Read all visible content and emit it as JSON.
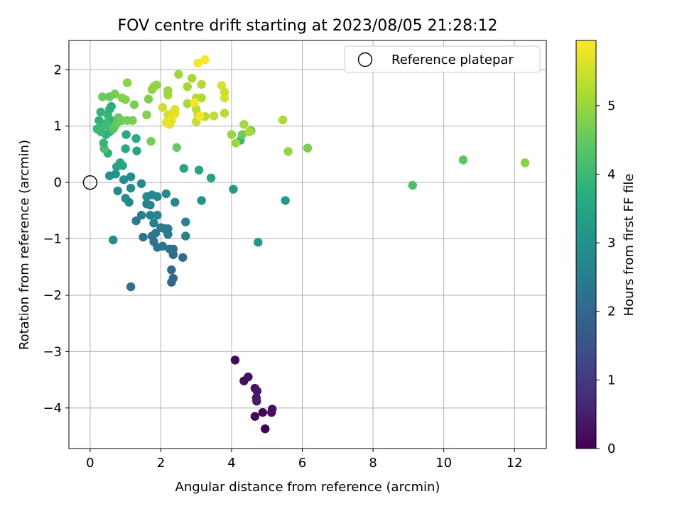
{
  "chart_data": {
    "type": "scatter",
    "title": "FOV centre drift starting at 2023/08/05 21:28:12",
    "xlabel": "Angular distance from reference (arcmin)",
    "ylabel": "Rotation from reference (arcmin)",
    "xlim": [
      -0.6,
      12.9
    ],
    "ylim": [
      -4.72,
      2.52
    ],
    "xticks": [
      "0",
      "2",
      "4",
      "6",
      "8",
      "10",
      "12"
    ],
    "yticks": [
      "−4",
      "−3",
      "−2",
      "−1",
      "0",
      "1",
      "2"
    ],
    "grid": true,
    "legend": {
      "placement": "top-right",
      "entries": [
        "Reference platepar"
      ]
    },
    "reference_point": {
      "x": 0,
      "y": 0
    },
    "colorbar": {
      "label": "Hours from first FF file",
      "colormap": "viridis",
      "range": [
        0,
        5.95
      ],
      "ticks": [
        "0",
        "1",
        "2",
        "3",
        "4",
        "5"
      ]
    },
    "series": [
      {
        "values": [
          {
            "x": 4.1,
            "y": -3.15,
            "c": 0.15
          },
          {
            "x": 4.35,
            "y": -3.52,
            "c": 0.2
          },
          {
            "x": 4.47,
            "y": -3.45,
            "c": 0.25
          },
          {
            "x": 4.66,
            "y": -3.65,
            "c": 0.3
          },
          {
            "x": 4.72,
            "y": -3.7,
            "c": 0.35
          },
          {
            "x": 4.7,
            "y": -3.82,
            "c": 0.4
          },
          {
            "x": 4.71,
            "y": -3.88,
            "c": 0.45
          },
          {
            "x": 4.66,
            "y": -4.15,
            "c": 0.1
          },
          {
            "x": 4.88,
            "y": -4.08,
            "c": 0.05
          },
          {
            "x": 5.13,
            "y": -4.08,
            "c": 0.2
          },
          {
            "x": 5.15,
            "y": -4.02,
            "c": 0.25
          },
          {
            "x": 4.95,
            "y": -4.37,
            "c": 0.0
          },
          {
            "x": 2.3,
            "y": -1.77,
            "c": 1.9
          },
          {
            "x": 2.35,
            "y": -1.7,
            "c": 1.95
          },
          {
            "x": 2.3,
            "y": -1.55,
            "c": 2.0
          },
          {
            "x": 2.35,
            "y": -1.28,
            "c": 2.05
          },
          {
            "x": 2.35,
            "y": -1.18,
            "c": 2.1
          },
          {
            "x": 2.25,
            "y": -1.18,
            "c": 2.15
          },
          {
            "x": 2.62,
            "y": -1.33,
            "c": 2.1
          },
          {
            "x": 2.05,
            "y": -1.13,
            "c": 2.2
          },
          {
            "x": 1.9,
            "y": -1.15,
            "c": 2.25
          },
          {
            "x": 1.8,
            "y": -1.05,
            "c": 2.3
          },
          {
            "x": 1.75,
            "y": -0.95,
            "c": 2.35
          },
          {
            "x": 1.85,
            "y": -0.9,
            "c": 2.4
          },
          {
            "x": 1.5,
            "y": -0.97,
            "c": 2.3
          },
          {
            "x": 1.15,
            "y": -1.85,
            "c": 2.2
          },
          {
            "x": 2.0,
            "y": -0.8,
            "c": 2.45
          },
          {
            "x": 2.1,
            "y": -0.82,
            "c": 2.5
          },
          {
            "x": 2.2,
            "y": -0.82,
            "c": 2.55
          },
          {
            "x": 2.2,
            "y": -0.92,
            "c": 2.5
          },
          {
            "x": 2.7,
            "y": -0.95,
            "c": 2.6
          },
          {
            "x": 2.7,
            "y": -0.7,
            "c": 2.65
          },
          {
            "x": 1.8,
            "y": -0.72,
            "c": 2.6
          },
          {
            "x": 1.7,
            "y": -0.58,
            "c": 2.65
          },
          {
            "x": 1.9,
            "y": -0.58,
            "c": 2.7
          },
          {
            "x": 1.3,
            "y": -0.68,
            "c": 2.5
          },
          {
            "x": 1.45,
            "y": -0.58,
            "c": 2.55
          },
          {
            "x": 1.6,
            "y": -0.38,
            "c": 2.6
          },
          {
            "x": 1.7,
            "y": -0.4,
            "c": 2.65
          },
          {
            "x": 1.9,
            "y": -0.25,
            "c": 2.75
          },
          {
            "x": 1.75,
            "y": -0.22,
            "c": 2.8
          },
          {
            "x": 1.6,
            "y": -0.25,
            "c": 2.85
          },
          {
            "x": 2.15,
            "y": -0.2,
            "c": 2.85
          },
          {
            "x": 2.4,
            "y": -0.35,
            "c": 2.75
          },
          {
            "x": 1.1,
            "y": -0.35,
            "c": 2.8
          },
          {
            "x": 1.0,
            "y": -0.28,
            "c": 2.85
          },
          {
            "x": 0.78,
            "y": -0.15,
            "c": 2.9
          },
          {
            "x": 1.45,
            "y": -0.02,
            "c": 2.75
          },
          {
            "x": 1.15,
            "y": -0.1,
            "c": 2.9
          },
          {
            "x": 0.95,
            "y": 0.05,
            "c": 2.95
          },
          {
            "x": 1.15,
            "y": 0.1,
            "c": 2.95
          },
          {
            "x": 0.65,
            "y": -1.02,
            "c": 2.8
          },
          {
            "x": 0.55,
            "y": 0.12,
            "c": 3.0
          },
          {
            "x": 0.72,
            "y": 0.15,
            "c": 3.0
          },
          {
            "x": 3.15,
            "y": -0.32,
            "c": 3.1
          },
          {
            "x": 4.05,
            "y": -0.12,
            "c": 3.15
          },
          {
            "x": 4.75,
            "y": -1.06,
            "c": 3.2
          },
          {
            "x": 5.52,
            "y": -0.32,
            "c": 3.2
          },
          {
            "x": 2.65,
            "y": 0.25,
            "c": 3.55
          },
          {
            "x": 3.08,
            "y": 0.22,
            "c": 3.5
          },
          {
            "x": 3.42,
            "y": 0.08,
            "c": 3.4
          },
          {
            "x": 0.75,
            "y": 0.28,
            "c": 3.5
          },
          {
            "x": 0.85,
            "y": 0.35,
            "c": 3.5
          },
          {
            "x": 0.92,
            "y": 0.3,
            "c": 3.55
          },
          {
            "x": 1.0,
            "y": 0.6,
            "c": 3.6
          },
          {
            "x": 1.32,
            "y": 0.56,
            "c": 3.5
          },
          {
            "x": 1.3,
            "y": 0.78,
            "c": 3.65
          },
          {
            "x": 1.02,
            "y": 0.85,
            "c": 3.6
          },
          {
            "x": 4.25,
            "y": 0.75,
            "c": 4.0
          },
          {
            "x": 0.5,
            "y": 0.52,
            "c": 3.8
          },
          {
            "x": 0.4,
            "y": 0.6,
            "c": 4.2
          },
          {
            "x": 0.38,
            "y": 0.7,
            "c": 3.9
          },
          {
            "x": 0.45,
            "y": 0.85,
            "c": 3.75
          },
          {
            "x": 0.55,
            "y": 0.9,
            "c": 3.8
          },
          {
            "x": 0.2,
            "y": 0.95,
            "c": 3.9
          },
          {
            "x": 0.3,
            "y": 0.9,
            "c": 4.0
          },
          {
            "x": 0.35,
            "y": 1.0,
            "c": 4.0
          },
          {
            "x": 0.55,
            "y": 1.0,
            "c": 3.95
          },
          {
            "x": 0.62,
            "y": 1.1,
            "c": 3.9
          },
          {
            "x": 0.5,
            "y": 1.2,
            "c": 3.95
          },
          {
            "x": 0.6,
            "y": 1.35,
            "c": 3.7
          },
          {
            "x": 0.55,
            "y": 1.3,
            "c": 3.8
          },
          {
            "x": 0.3,
            "y": 1.25,
            "c": 3.85
          },
          {
            "x": 0.25,
            "y": 1.1,
            "c": 3.8
          },
          {
            "x": 0.45,
            "y": 1.05,
            "c": 4.05
          },
          {
            "x": 0.65,
            "y": 0.95,
            "c": 4.3
          },
          {
            "x": 0.7,
            "y": 1.0,
            "c": 4.4
          },
          {
            "x": 0.75,
            "y": 1.05,
            "c": 4.5
          },
          {
            "x": 0.8,
            "y": 1.15,
            "c": 4.55
          },
          {
            "x": 0.9,
            "y": 1.1,
            "c": 4.6
          },
          {
            "x": 1.05,
            "y": 1.1,
            "c": 4.65
          },
          {
            "x": 1.2,
            "y": 1.1,
            "c": 4.7
          },
          {
            "x": 0.35,
            "y": 1.52,
            "c": 4.6
          },
          {
            "x": 0.55,
            "y": 1.52,
            "c": 4.5
          },
          {
            "x": 0.7,
            "y": 1.57,
            "c": 4.7
          },
          {
            "x": 0.9,
            "y": 1.5,
            "c": 4.8
          },
          {
            "x": 1.0,
            "y": 1.47,
            "c": 4.85
          },
          {
            "x": 1.05,
            "y": 1.77,
            "c": 4.9
          },
          {
            "x": 1.25,
            "y": 1.38,
            "c": 4.7
          },
          {
            "x": 1.6,
            "y": 1.2,
            "c": 4.8
          },
          {
            "x": 1.65,
            "y": 1.48,
            "c": 4.75
          },
          {
            "x": 1.75,
            "y": 1.65,
            "c": 4.9
          },
          {
            "x": 1.8,
            "y": 1.7,
            "c": 4.95
          },
          {
            "x": 1.88,
            "y": 1.73,
            "c": 4.95
          },
          {
            "x": 1.72,
            "y": 0.73,
            "c": 4.7
          },
          {
            "x": 2.45,
            "y": 0.62,
            "c": 4.5
          },
          {
            "x": 4.3,
            "y": 0.85,
            "c": 4.6
          },
          {
            "x": 4.55,
            "y": 0.92,
            "c": 4.55
          },
          {
            "x": 4.0,
            "y": 0.85,
            "c": 5.0
          },
          {
            "x": 4.12,
            "y": 0.7,
            "c": 5.05
          },
          {
            "x": 4.35,
            "y": 1.03,
            "c": 5.1
          },
          {
            "x": 4.5,
            "y": 0.9,
            "c": 5.15
          },
          {
            "x": 5.45,
            "y": 1.11,
            "c": 5.2
          },
          {
            "x": 5.6,
            "y": 0.55,
            "c": 4.95
          },
          {
            "x": 6.15,
            "y": 0.61,
            "c": 4.7
          },
          {
            "x": 9.12,
            "y": -0.05,
            "c": 4.2
          },
          {
            "x": 10.55,
            "y": 0.4,
            "c": 4.4
          },
          {
            "x": 12.3,
            "y": 0.35,
            "c": 4.9
          },
          {
            "x": 2.2,
            "y": 1.55,
            "c": 5.1
          },
          {
            "x": 2.2,
            "y": 1.63,
            "c": 5.0
          },
          {
            "x": 2.5,
            "y": 1.92,
            "c": 5.05
          },
          {
            "x": 2.75,
            "y": 1.7,
            "c": 5.1
          },
          {
            "x": 2.88,
            "y": 1.85,
            "c": 5.15
          },
          {
            "x": 2.75,
            "y": 1.4,
            "c": 5.15
          },
          {
            "x": 3.0,
            "y": 1.5,
            "c": 5.2
          },
          {
            "x": 3.15,
            "y": 1.5,
            "c": 5.2
          },
          {
            "x": 3.15,
            "y": 1.74,
            "c": 5.25
          },
          {
            "x": 3.0,
            "y": 1.3,
            "c": 5.3
          },
          {
            "x": 3.05,
            "y": 1.2,
            "c": 5.35
          },
          {
            "x": 3.25,
            "y": 1.17,
            "c": 5.3
          },
          {
            "x": 3.5,
            "y": 1.18,
            "c": 5.35
          },
          {
            "x": 3.0,
            "y": 1.08,
            "c": 5.4
          },
          {
            "x": 3.8,
            "y": 1.23,
            "c": 5.3
          },
          {
            "x": 3.8,
            "y": 1.6,
            "c": 5.45
          },
          {
            "x": 3.8,
            "y": 1.5,
            "c": 5.55
          },
          {
            "x": 3.72,
            "y": 1.72,
            "c": 5.6
          },
          {
            "x": 2.05,
            "y": 1.33,
            "c": 5.5
          },
          {
            "x": 2.2,
            "y": 1.2,
            "c": 5.55
          },
          {
            "x": 2.3,
            "y": 1.22,
            "c": 5.6
          },
          {
            "x": 2.4,
            "y": 1.3,
            "c": 5.65
          },
          {
            "x": 2.4,
            "y": 1.22,
            "c": 5.7
          },
          {
            "x": 2.3,
            "y": 1.1,
            "c": 5.75
          },
          {
            "x": 2.25,
            "y": 1.03,
            "c": 5.7
          },
          {
            "x": 2.15,
            "y": 1.07,
            "c": 5.75
          },
          {
            "x": 2.95,
            "y": 1.42,
            "c": 5.85
          },
          {
            "x": 3.1,
            "y": 1.17,
            "c": 5.9
          },
          {
            "x": 3.05,
            "y": 2.12,
            "c": 5.9
          },
          {
            "x": 3.25,
            "y": 2.18,
            "c": 5.95
          }
        ]
      }
    ]
  }
}
